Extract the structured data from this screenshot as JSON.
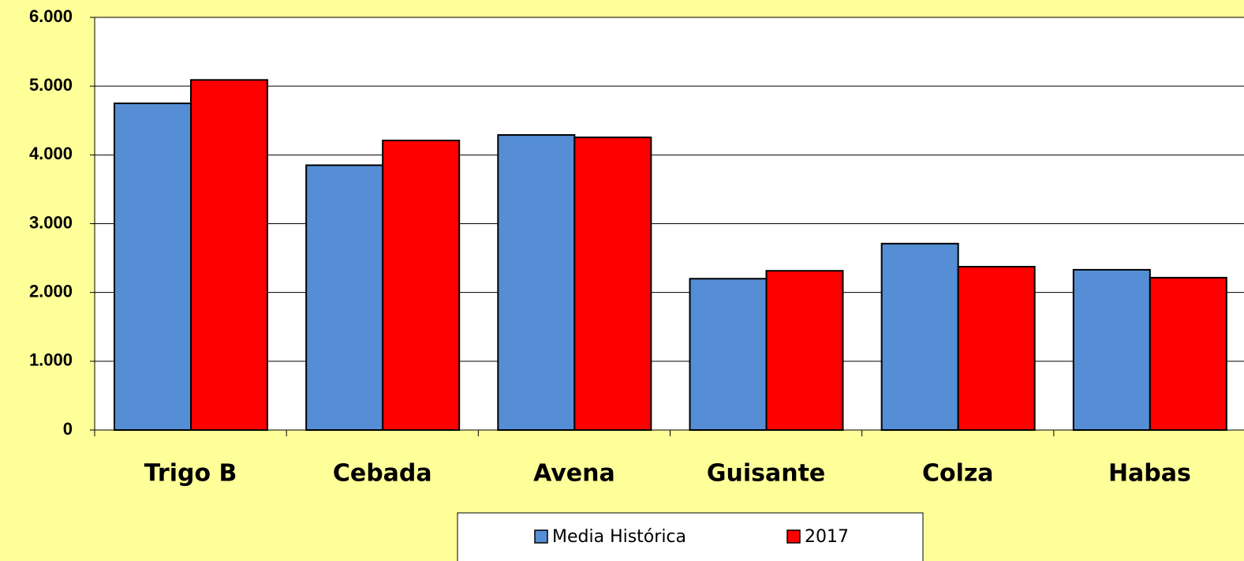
{
  "chart_data": {
    "type": "bar",
    "categories": [
      "Trigo B",
      "Cebada",
      "Avena",
      "Guisante",
      "Colza",
      "Habas"
    ],
    "series": [
      {
        "name": "Media Histórica",
        "color": "#558ed5",
        "values": [
          4750,
          3850,
          4290,
          2200,
          2710,
          2330
        ]
      },
      {
        "name": "2017",
        "color": "#ff0000",
        "values": [
          5090,
          4210,
          4255,
          2315,
          2375,
          2215
        ]
      }
    ],
    "ylim": [
      0,
      6000
    ],
    "yticks": [
      0,
      {
        "value": 1000,
        "label": "1.000"
      },
      {
        "value": 2000,
        "label": "2.000"
      },
      {
        "value": 3000,
        "label": "3.000"
      },
      {
        "value": 4000,
        "label": "4.000"
      },
      {
        "value": 5000,
        "label": "5.000"
      },
      {
        "value": 6000,
        "label": "6.000"
      }
    ],
    "grid": true,
    "legend": "bottom"
  }
}
